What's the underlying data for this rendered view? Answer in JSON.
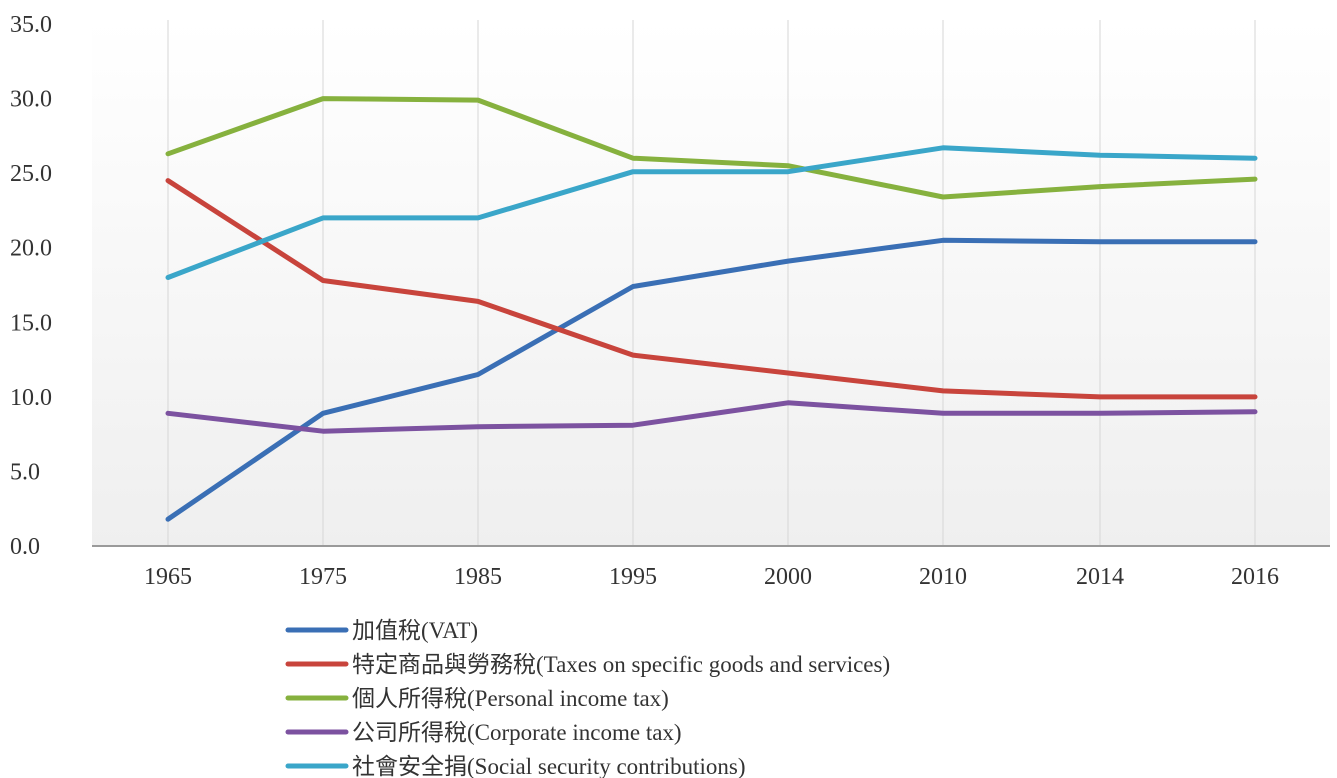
{
  "chart_data": {
    "type": "line",
    "categories": [
      "1965",
      "1975",
      "1985",
      "1995",
      "2000",
      "2010",
      "2014",
      "2016"
    ],
    "ylim": [
      0,
      35
    ],
    "yticks": [
      "0.0",
      "5.0",
      "10.0",
      "15.0",
      "20.0",
      "25.0",
      "30.0",
      "35.0"
    ],
    "grid": "vertical",
    "legend_position": "bottom",
    "series": [
      {
        "name": "加值稅(VAT)",
        "color": "#3a6fb5",
        "values": [
          1.8,
          8.9,
          11.5,
          17.4,
          19.1,
          20.5,
          20.4,
          20.4
        ]
      },
      {
        "name": "特定商品與勞務稅(Taxes on specific goods and services)",
        "color": "#c8443c",
        "values": [
          24.5,
          17.8,
          16.4,
          12.8,
          11.6,
          10.4,
          10.0,
          10.0
        ]
      },
      {
        "name": "個人所得稅(Personal income tax)",
        "color": "#86b13e",
        "values": [
          26.3,
          30.0,
          29.9,
          26.0,
          25.5,
          23.4,
          24.1,
          24.6
        ]
      },
      {
        "name": "公司所得稅(Corporate income tax)",
        "color": "#7c52a0",
        "values": [
          8.9,
          7.7,
          8.0,
          8.1,
          9.6,
          8.9,
          8.9,
          9.0
        ]
      },
      {
        "name": "社會安全捐(Social security contributions)",
        "color": "#3aa6c9",
        "values": [
          18.0,
          22.0,
          22.0,
          25.1,
          25.1,
          26.7,
          26.2,
          26.0
        ]
      }
    ]
  }
}
